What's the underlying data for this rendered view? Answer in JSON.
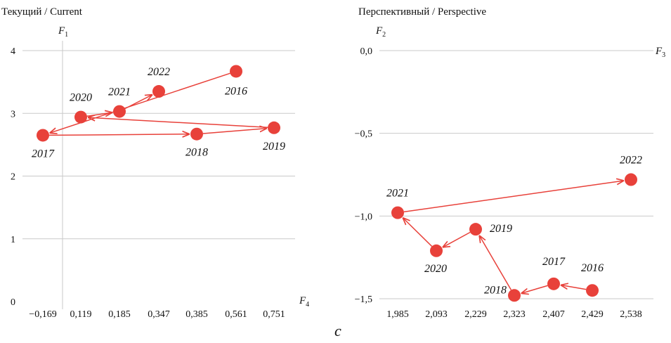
{
  "caption": "c",
  "chart_data": [
    {
      "type": "scatter",
      "title": "Текущий / Current",
      "xlabel": "F",
      "xlabel_sub": "4",
      "ylabel": "F",
      "ylabel_sub": "1",
      "x_categories": [
        "−0,169",
        "0,119",
        "0,185",
        "0,347",
        "0,385",
        "0,561",
        "0,751"
      ],
      "x_labeled_categories": true,
      "ylim": [
        0,
        4
      ],
      "y_ticks": [
        "0",
        "1",
        "2",
        "3",
        "4"
      ],
      "grid": "horizontal",
      "color": "#e8413a",
      "points": [
        {
          "label": "2016",
          "x": "0,561",
          "y": 3.67
        },
        {
          "label": "2017",
          "x": "−0,169",
          "y": 2.65
        },
        {
          "label": "2018",
          "x": "0,385",
          "y": 2.67
        },
        {
          "label": "2019",
          "x": "0,751",
          "y": 2.77
        },
        {
          "label": "2020",
          "x": "0,119",
          "y": 2.94
        },
        {
          "label": "2021",
          "x": "0,185",
          "y": 3.03
        },
        {
          "label": "2022",
          "x": "0,347",
          "y": 3.35
        }
      ],
      "arrows": [
        [
          "2016",
          "2017"
        ],
        [
          "2017",
          "2018"
        ],
        [
          "2018",
          "2019"
        ],
        [
          "2019",
          "2020"
        ],
        [
          "2020",
          "2021"
        ],
        [
          "2021",
          "2022"
        ]
      ]
    },
    {
      "type": "scatter",
      "title": "Перспективный / Perspective",
      "xlabel": "F",
      "xlabel_sub": "3",
      "ylabel": "F",
      "ylabel_sub": "2",
      "x_categories": [
        "1,985",
        "2,093",
        "2,229",
        "2,323",
        "2,407",
        "2,429",
        "2,538"
      ],
      "ylim": [
        -1.5,
        0
      ],
      "y_ticks": [
        "0,0",
        "−0,5",
        "−1,0",
        "−1,5"
      ],
      "y_tick_values": [
        0,
        -0.5,
        -1.0,
        -1.5
      ],
      "grid": "horizontal",
      "color": "#e8413a",
      "points": [
        {
          "label": "2016",
          "x": "2,429",
          "y": -1.45
        },
        {
          "label": "2017",
          "x": "2,407",
          "y": -1.41
        },
        {
          "label": "2018",
          "x": "2,323",
          "y": -1.48
        },
        {
          "label": "2019",
          "x": "2,229",
          "y": -1.08
        },
        {
          "label": "2020",
          "x": "2,093",
          "y": -1.21
        },
        {
          "label": "2021",
          "x": "1,985",
          "y": -0.98
        },
        {
          "label": "2022",
          "x": "2,538",
          "y": -0.78
        }
      ],
      "arrows": [
        [
          "2016",
          "2017"
        ],
        [
          "2017",
          "2018"
        ],
        [
          "2018",
          "2019"
        ],
        [
          "2019",
          "2020"
        ],
        [
          "2020",
          "2021"
        ],
        [
          "2021",
          "2022"
        ]
      ]
    }
  ]
}
